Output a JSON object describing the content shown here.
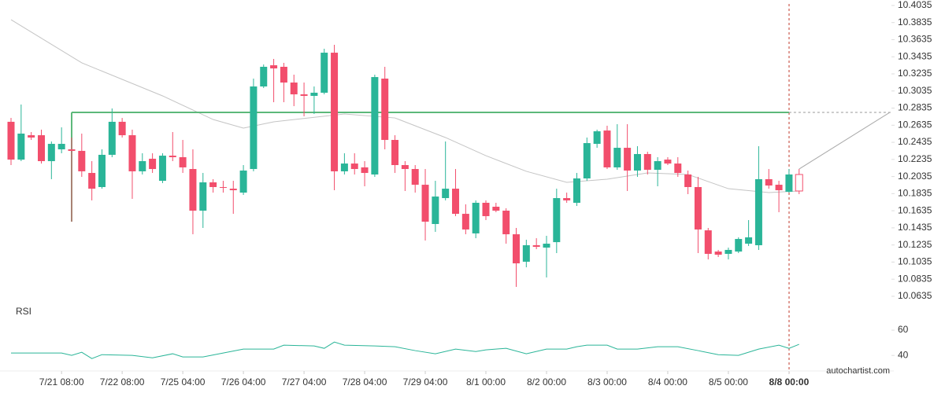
{
  "chart_data": {
    "type": "candlestick",
    "categories": [
      null,
      null,
      null,
      null,
      null,
      "7/21 08:00",
      null,
      null,
      null,
      null,
      null,
      "7/22 08:00",
      null,
      null,
      null,
      null,
      null,
      "7/25 04:00",
      null,
      null,
      null,
      null,
      null,
      "7/26 04:00",
      null,
      null,
      null,
      null,
      null,
      "7/27 04:00",
      null,
      null,
      null,
      null,
      null,
      "7/28 04:00",
      null,
      null,
      null,
      null,
      null,
      "7/29 04:00",
      null,
      null,
      null,
      null,
      null,
      "8/1 00:00",
      null,
      null,
      null,
      null,
      null,
      "8/2 00:00",
      null,
      null,
      null,
      null,
      null,
      "8/3 00:00",
      null,
      null,
      null,
      null,
      null,
      "8/4 00:00",
      null,
      null,
      null,
      null,
      null,
      "8/5 00:00",
      null,
      null,
      null,
      null,
      null,
      "8/8 00:00",
      null
    ],
    "open": [
      10.2675,
      10.2233,
      10.2518,
      10.2518,
      10.2215,
      10.2353,
      10.2353,
      10.2335,
      10.2077,
      10.1912,
      10.2289,
      10.2675,
      10.2518,
      10.2096,
      10.2243,
      10.1985,
      10.2279,
      10.2261,
      10.2123,
      10.1636,
      10.1967,
      10.1912,
      10.1893,
      10.1847,
      10.2123,
      10.3088,
      10.3336,
      10.3318,
      10.3134,
      10.2996,
      10.2978,
      10.3015,
      10.3483,
      10.2096,
      10.2187,
      10.2142,
      10.2059,
      10.318,
      10.2463,
      10.2169,
      10.2123,
      10.1939,
      10.148,
      10.1783,
      10.1893,
      10.1599,
      10.137,
      10.1728,
      10.1682,
      10.1636,
      10.136,
      10.1039,
      10.1232,
      10.1204,
      10.1268,
      10.1783,
      10.1728,
      10.2013,
      10.2417,
      10.2573,
      10.2142,
      10.2371,
      10.2105,
      10.2298,
      10.2114,
      10.2233,
      10.2187,
      10.2059,
      10.1912,
      10.1406,
      10.1158,
      10.1131,
      10.1158,
      10.125,
      10.1232,
      10.2004,
      10.1939,
      10.1857,
      10.2059
    ],
    "high": [
      10.272,
      10.2877,
      10.2555,
      10.2583,
      10.2445,
      10.261,
      10.2491,
      10.2537,
      10.2215,
      10.2353,
      10.2831,
      10.272,
      10.2583,
      10.2307,
      10.2307,
      10.2307,
      10.2555,
      10.2463,
      10.2353,
      10.2077,
      10.2004,
      10.1985,
      10.1985,
      10.2169,
      10.318,
      10.3345,
      10.341,
      10.3364,
      10.3226,
      10.3134,
      10.3088,
      10.3529,
      10.3575,
      10.2307,
      10.2307,
      10.2215,
      10.3226,
      10.3318,
      10.2518,
      10.2215,
      10.2169,
      10.2123,
      10.1985,
      10.2445,
      10.2123,
      10.171,
      10.1756,
      10.1756,
      10.1728,
      10.1664,
      10.1434,
      10.1296,
      10.1314,
      10.1342,
      10.1893,
      10.1847,
      10.2077,
      10.2491,
      10.2583,
      10.2629,
      10.2647,
      10.2647,
      10.239,
      10.2325,
      10.2261,
      10.2261,
      10.2261,
      10.2105,
      10.2031,
      10.1434,
      10.1177,
      10.1204,
      10.1324,
      10.1526,
      10.239,
      10.2123,
      10.1985,
      10.2123,
      10.2123
    ],
    "low": [
      10.2169,
      10.2215,
      10.2463,
      10.2187,
      10.2004,
      10.2307,
      10.1507,
      10.2031,
      10.1756,
      10.1893,
      10.2261,
      10.2491,
      10.1774,
      10.2059,
      10.2077,
      10.1958,
      10.2215,
      10.2077,
      10.136,
      10.1434,
      10.1847,
      10.1847,
      10.1599,
      10.182,
      10.2096,
      10.307,
      10.2904,
      10.2904,
      10.2858,
      10.2739,
      10.2766,
      10.2996,
      10.1875,
      10.2059,
      10.2059,
      10.1921,
      10.2031,
      10.2353,
      10.2077,
      10.1866,
      10.1847,
      10.1287,
      10.1388,
      10.1756,
      10.1572,
      10.136,
      10.1314,
      10.1526,
      10.1618,
      10.125,
      10.0745,
      10.0974,
      10.1186,
      10.0855,
      10.114,
      10.1728,
      10.1691,
      10.1985,
      10.2371,
      10.2123,
      10.2114,
      10.1866,
      10.2031,
      10.2059,
      10.1921,
      10.2169,
      10.2031,
      10.1829,
      10.114,
      10.1066,
      10.1094,
      10.1066,
      10.114,
      10.1223,
      10.1177,
      10.1893,
      10.1618,
      10.1847,
      10.1829
    ],
    "close": [
      10.2233,
      10.2537,
      10.2491,
      10.2215,
      10.2417,
      10.2417,
      10.2335,
      10.2096,
      10.1893,
      10.2289,
      10.2675,
      10.2518,
      10.2096,
      10.2215,
      10.2123,
      10.2279,
      10.2261,
      10.2142,
      10.1636,
      10.1967,
      10.1912,
      10.1903,
      10.1875,
      10.2105,
      10.3088,
      10.3318,
      10.3299,
      10.3134,
      10.2996,
      10.2978,
      10.3015,
      10.3483,
      10.2096,
      10.2187,
      10.2123,
      10.2077,
      10.3198,
      10.2463,
      10.2169,
      10.2123,
      10.1939,
      10.1507,
      10.1801,
      10.1893,
      10.1599,
      10.1416,
      10.1728,
      10.1572,
      10.1636,
      10.136,
      10.102,
      10.1232,
      10.1213,
      10.125,
      10.1783,
      10.1756,
      10.2013,
      10.2426,
      10.2564,
      10.2142,
      10.2371,
      10.2105,
      10.2298,
      10.2114,
      10.2215,
      10.2187,
      10.2077,
      10.1912,
      10.1416,
      10.1131,
      10.1121,
      10.1177,
      10.1305,
      10.1324,
      10.2004,
      10.193,
      10.1875,
      10.2059,
      10.1866
    ],
    "up_color": "#2ab598",
    "down_color": "#f24e6c",
    "ylim": [
      10.0515,
      10.4099
    ],
    "yticks": [
      10.4035,
      10.3835,
      10.3635,
      10.3435,
      10.3235,
      10.3035,
      10.2835,
      10.2635,
      10.2435,
      10.2235,
      10.2035,
      10.1835,
      10.1635,
      10.1435,
      10.1235,
      10.1035,
      10.0835,
      10.0635
    ],
    "grid": false,
    "resistance": {
      "value": 10.2785,
      "x": [
        6,
        77
      ],
      "color": "#5cb87a"
    },
    "moving_average": {
      "x": [
        0,
        7,
        15,
        20,
        23,
        26,
        33,
        38,
        43,
        47,
        51,
        55,
        59,
        63,
        67,
        71,
        75,
        78
      ],
      "values": [
        10.3869,
        10.3364,
        10.2978,
        10.2702,
        10.2601,
        10.2675,
        10.2766,
        10.272,
        10.2491,
        10.2279,
        10.2096,
        10.1967,
        10.2004,
        10.2077,
        10.2059,
        10.1893,
        10.1847,
        10.1866
      ],
      "color": "#c4c4c4"
    },
    "rsi": {
      "title": "RSI",
      "x": [
        0,
        5,
        6,
        7,
        8,
        9,
        12,
        14,
        16,
        17,
        19,
        21,
        23,
        26,
        27,
        30,
        31,
        32,
        33,
        36,
        38,
        40,
        42,
        44,
        46,
        47,
        49,
        51,
        53,
        55,
        56,
        57,
        59,
        60,
        62,
        64,
        66,
        68,
        70,
        72,
        74,
        76,
        77,
        78
      ],
      "values": [
        41.9,
        41.9,
        40,
        42.5,
        37.5,
        40.6,
        40,
        38.1,
        41.3,
        38.8,
        38.8,
        41.9,
        45,
        45,
        48.1,
        47.5,
        45.6,
        50.6,
        48.1,
        47.5,
        46.9,
        43.8,
        41.3,
        45,
        43.1,
        44.4,
        45.6,
        41.3,
        45,
        45,
        46.9,
        48.1,
        48.1,
        45,
        45,
        46.9,
        46.9,
        43.8,
        40.6,
        40,
        45,
        48.1,
        45.6,
        48.8
      ],
      "ylim": [
        32,
        72.5
      ],
      "yticks": [
        60,
        40
      ],
      "color": "#2ab598"
    },
    "footer": "autochartist.com"
  }
}
